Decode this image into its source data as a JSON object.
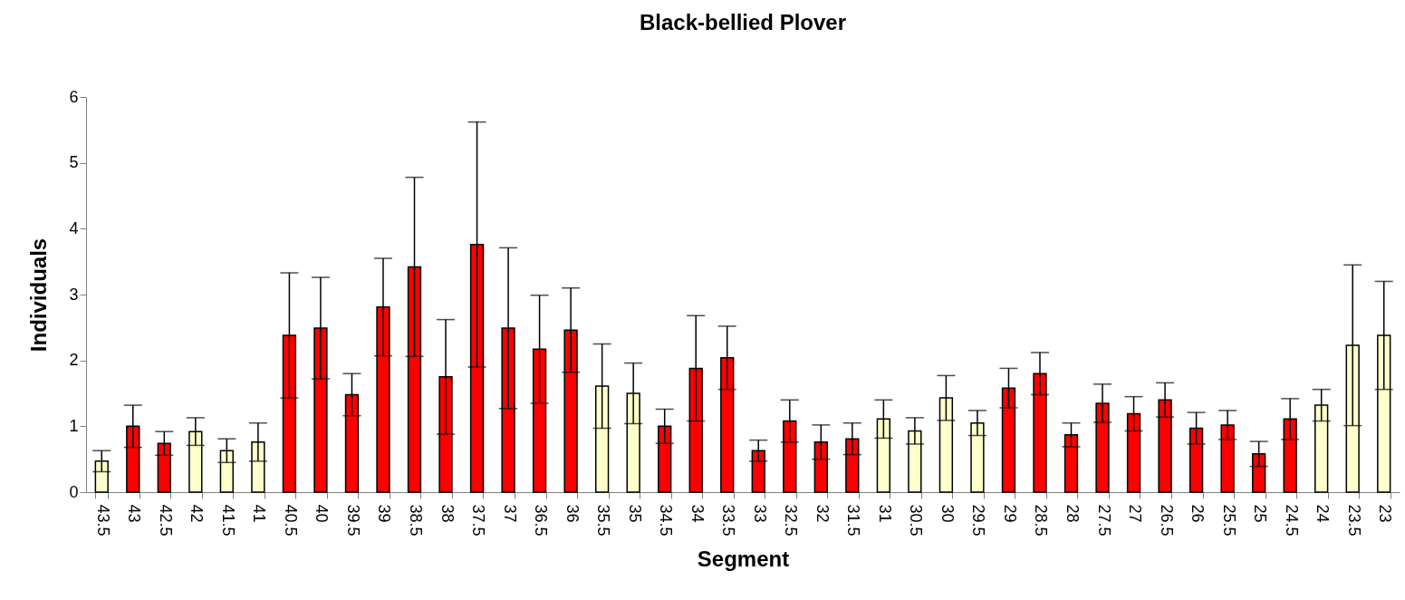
{
  "chart_data": {
    "type": "bar",
    "title": "Black-bellied Plover",
    "xlabel": "Segment",
    "ylabel": "Individuals",
    "categories": [
      "43.5",
      "43",
      "42.5",
      "42",
      "41.5",
      "41",
      "40.5",
      "40",
      "39.5",
      "39",
      "38.5",
      "38",
      "37.5",
      "37",
      "36.5",
      "36",
      "35.5",
      "35",
      "34.5",
      "34",
      "33.5",
      "33",
      "32.5",
      "32",
      "31.5",
      "31",
      "30.5",
      "30",
      "29.5",
      "29",
      "28.5",
      "28",
      "27.5",
      "27",
      "26.5",
      "26",
      "25.5",
      "25",
      "24.5",
      "24",
      "23.5",
      "23"
    ],
    "values": [
      0.47,
      1.0,
      0.74,
      0.92,
      0.63,
      0.76,
      2.38,
      2.49,
      1.48,
      2.81,
      3.42,
      1.75,
      3.76,
      2.49,
      2.17,
      2.46,
      1.61,
      1.5,
      1.0,
      1.88,
      2.04,
      0.63,
      1.08,
      0.76,
      0.81,
      1.11,
      0.93,
      1.43,
      1.05,
      1.58,
      1.8,
      0.87,
      1.35,
      1.19,
      1.4,
      0.97,
      1.02,
      0.58,
      1.11,
      1.32,
      2.23,
      2.38
    ],
    "errors": [
      0.16,
      0.32,
      0.18,
      0.21,
      0.18,
      0.29,
      0.95,
      0.77,
      0.32,
      0.74,
      1.36,
      0.87,
      1.86,
      1.22,
      0.82,
      0.64,
      0.64,
      0.46,
      0.26,
      0.8,
      0.48,
      0.16,
      0.32,
      0.26,
      0.24,
      0.29,
      0.2,
      0.34,
      0.19,
      0.3,
      0.32,
      0.18,
      0.29,
      0.26,
      0.26,
      0.24,
      0.22,
      0.19,
      0.31,
      0.24,
      1.22,
      0.82
    ],
    "colors": [
      "#ffffcc",
      "#ff0000",
      "#ff0000",
      "#ffffcc",
      "#ffffcc",
      "#ffffcc",
      "#ff0000",
      "#ff0000",
      "#ff0000",
      "#ff0000",
      "#ff0000",
      "#ff0000",
      "#ff0000",
      "#ff0000",
      "#ff0000",
      "#ff0000",
      "#ffffcc",
      "#ffffcc",
      "#ff0000",
      "#ff0000",
      "#ff0000",
      "#ff0000",
      "#ff0000",
      "#ff0000",
      "#ff0000",
      "#ffffcc",
      "#ffffcc",
      "#ffffcc",
      "#ffffcc",
      "#ff0000",
      "#ff0000",
      "#ff0000",
      "#ff0000",
      "#ff0000",
      "#ff0000",
      "#ff0000",
      "#ff0000",
      "#ff0000",
      "#ff0000",
      "#ffffcc",
      "#ffffcc",
      "#ffffcc"
    ],
    "ylim": [
      0,
      6
    ],
    "yticks": [
      0,
      1,
      2,
      3,
      4,
      5,
      6
    ],
    "grid": false
  }
}
